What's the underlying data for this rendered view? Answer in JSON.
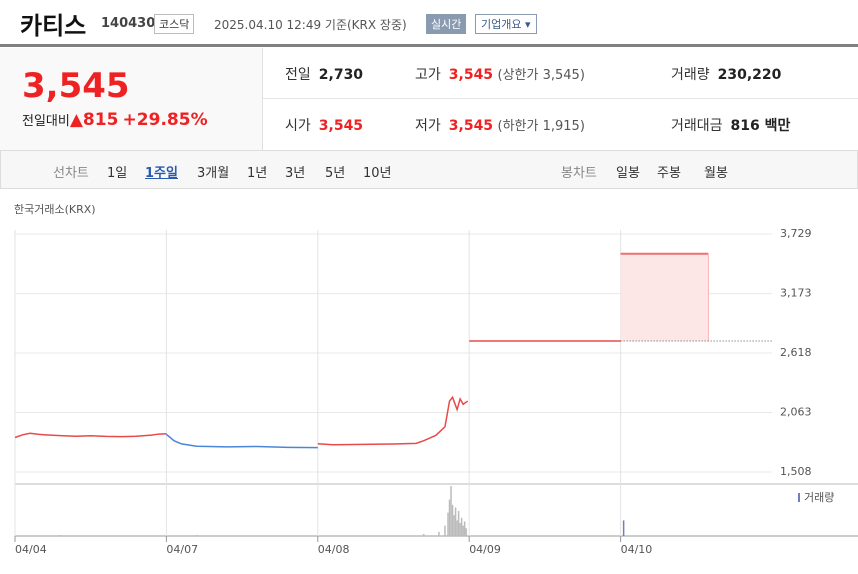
{
  "header": {
    "title": "카티스",
    "code": "140430",
    "market": "코스닥",
    "date": "2025.04.10 12:49 기준(KRX 장중)",
    "live": "실시간",
    "company_button": "기업개요 ▾"
  },
  "summary": {
    "price": "3,545",
    "change_label": "전일대비",
    "change": "▲815",
    "change_rate": "+29.85%"
  },
  "stats": [
    [
      {
        "key": "전일",
        "value": "2,730"
      },
      {
        "key": "고가",
        "value": "3,545",
        "sub": "(상한가 3,545)"
      },
      {
        "key": "거래량",
        "value": "230,220"
      }
    ],
    [
      {
        "key": "시가",
        "value": "3,545"
      },
      {
        "key": "저가",
        "value": "3,545",
        "sub": "(하한가 1,915)"
      },
      {
        "key": "거래대금",
        "value": "816 백만"
      }
    ]
  ],
  "tabs": {
    "line_label": "선차트",
    "line": [
      "1일",
      "1주일",
      "3개월",
      "1년",
      "3년",
      "5년",
      "10년"
    ],
    "candle_label": "봉차트",
    "candle": [
      "일봉",
      "주봉",
      "월봉"
    ]
  },
  "chart_data": {
    "type": "line",
    "source": "한국거래소(KRX)",
    "xlim": [
      0,
      5
    ],
    "xticks": [
      {
        "value": 0,
        "label": "04/04"
      },
      {
        "value": 1,
        "label": "04/07"
      },
      {
        "value": 2,
        "label": "04/08"
      },
      {
        "value": 3,
        "label": "04/09"
      },
      {
        "value": 4,
        "label": "04/10"
      }
    ],
    "ylim": [
      1508,
      3729
    ],
    "yticks": [
      {
        "value": 1508,
        "label": "1,508"
      },
      {
        "value": 2063,
        "label": "2,063"
      },
      {
        "value": 2618,
        "label": "2,618"
      },
      {
        "value": 3173,
        "label": "3,173"
      },
      {
        "value": 3729,
        "label": "3,729"
      }
    ],
    "series": [
      {
        "color": "#e84a4a",
        "x": [
          0,
          0.05,
          0.1,
          0.15,
          0.2,
          0.3,
          0.4,
          0.5,
          0.6,
          0.7,
          0.8,
          0.9,
          0.95,
          1.0
        ],
        "values": [
          1830,
          1855,
          1870,
          1860,
          1855,
          1848,
          1842,
          1846,
          1840,
          1838,
          1842,
          1852,
          1862,
          1865
        ]
      },
      {
        "color": "#4a86d8",
        "x": [
          1.0,
          1.05,
          1.1,
          1.2,
          1.4,
          1.6,
          1.8,
          2.0
        ],
        "values": [
          1860,
          1800,
          1770,
          1748,
          1742,
          1746,
          1738,
          1736
        ]
      },
      {
        "color": "#e84a4a",
        "x": [
          2.0,
          2.1,
          2.3,
          2.5,
          2.65,
          2.7,
          2.78,
          2.84,
          2.87,
          2.89,
          2.92,
          2.94,
          2.96,
          2.99
        ],
        "values": [
          1772,
          1762,
          1766,
          1769,
          1775,
          1800,
          1850,
          1930,
          2170,
          2205,
          2090,
          2190,
          2140,
          2170
        ]
      },
      {
        "color": "#e84a4a",
        "x": [
          3.0,
          4.0
        ],
        "values": [
          2730,
          2730
        ]
      }
    ],
    "box": {
      "x": [
        4.0,
        4.58
      ],
      "low": 2730,
      "high": 3545,
      "color": "#f07070"
    },
    "reference": 2730,
    "volume": {
      "legend": "거래량",
      "ylim": [
        0,
        100
      ],
      "x": [
        0.3,
        1.2,
        2.7,
        2.8,
        2.84,
        2.86,
        2.87,
        2.88,
        2.89,
        2.9,
        2.91,
        2.92,
        2.93,
        2.94,
        2.95,
        2.96,
        2.97,
        2.98,
        4.02
      ],
      "values": [
        2,
        2,
        4,
        8,
        20,
        45,
        70,
        96,
        60,
        40,
        55,
        30,
        48,
        25,
        35,
        20,
        28,
        15,
        30
      ]
    }
  }
}
